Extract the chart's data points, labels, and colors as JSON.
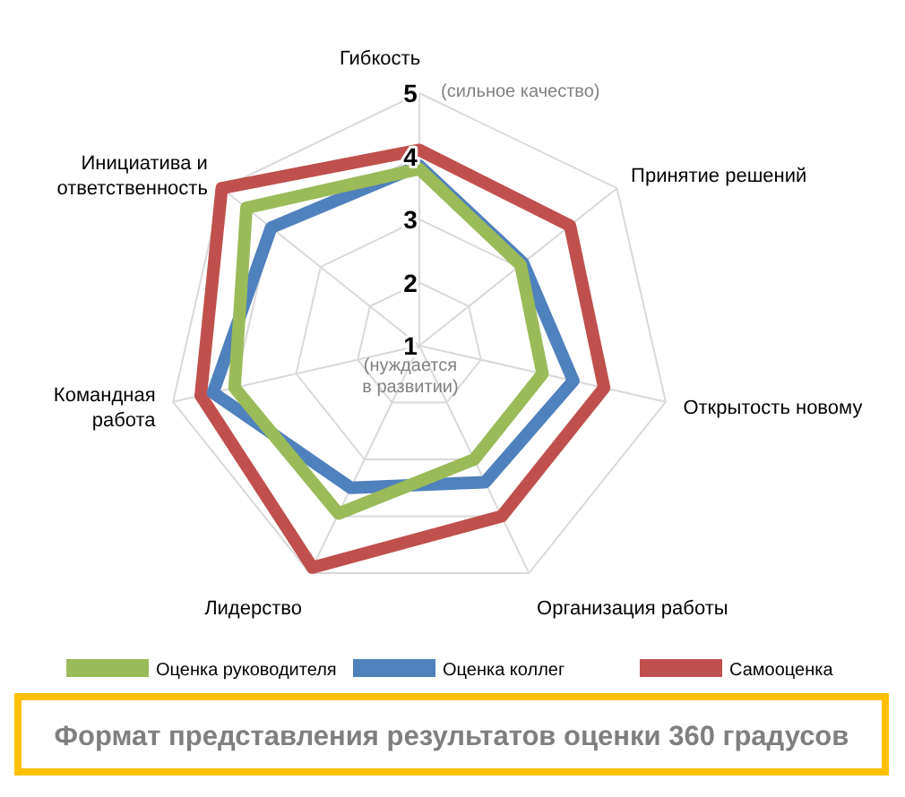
{
  "chart_data": {
    "type": "radar",
    "title": "Формат представления результатов оценки 360 градусов",
    "categories": [
      "Гибкость",
      "Принятие решений",
      "Открытость новому",
      "Организация работы",
      "Лидерство",
      "Командная работа",
      "Инициатива и ответственность"
    ],
    "series": [
      {
        "name": "Оценка руководителя",
        "color": "#9bbb59",
        "values": [
          3.8,
          3.05,
          3.0,
          3.0,
          3.95,
          4.0,
          4.5
        ]
      },
      {
        "name": "Оценка коллег",
        "color": "#4f81bd",
        "values": [
          3.85,
          3.1,
          3.5,
          3.4,
          3.5,
          4.35,
          4.0
        ]
      },
      {
        "name": "Самооценка",
        "color": "#c0504d",
        "values": [
          4.1,
          4.05,
          4.0,
          4.0,
          4.9,
          4.55,
          5.0
        ]
      }
    ],
    "ylim": [
      1,
      5
    ],
    "yticks": [
      1,
      2,
      3,
      4,
      5
    ],
    "grid": true,
    "legend": "bottom",
    "annotations": [
      "(сильное качество)",
      "(нуждается в развитии)"
    ]
  }
}
